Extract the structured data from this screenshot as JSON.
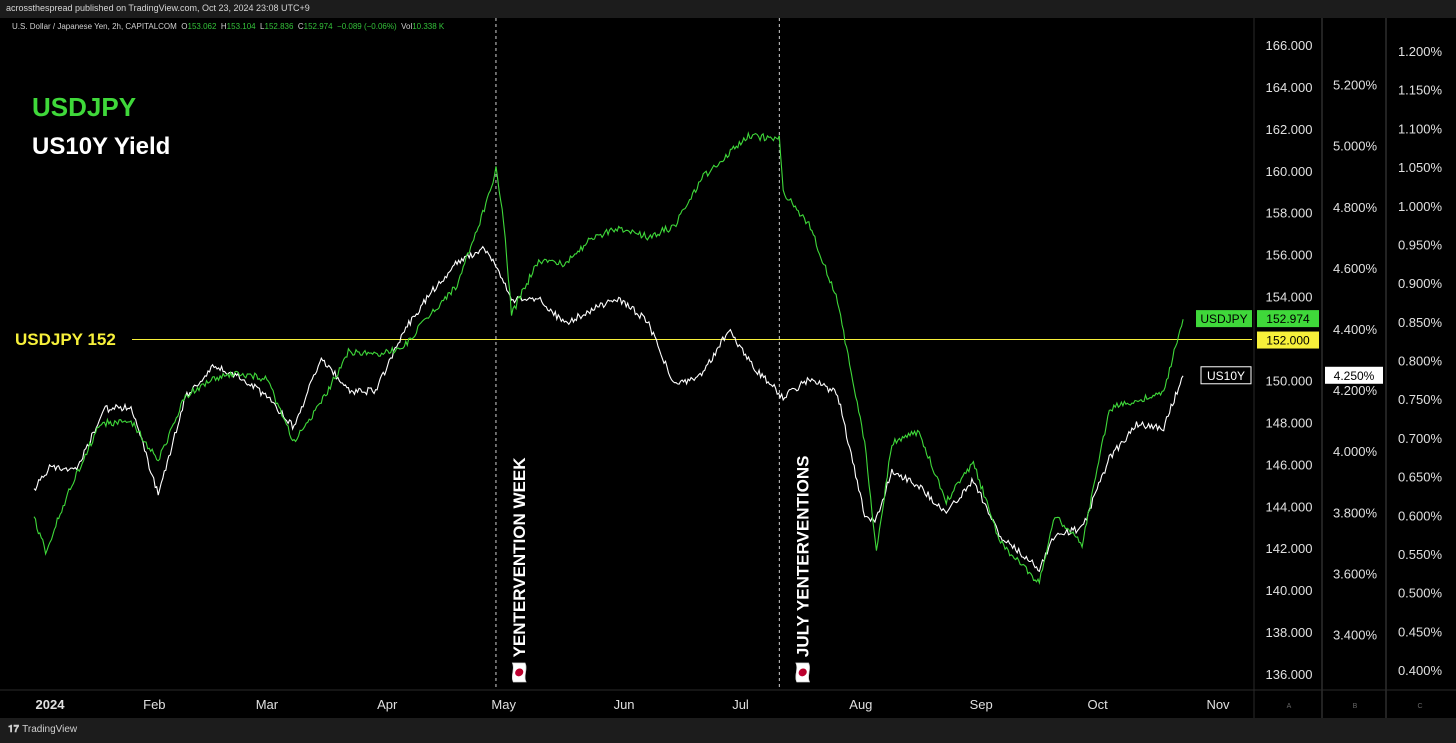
{
  "header": {
    "published_text": "acrossthespread published on TradingView.com, Oct 23, 2024 23:08 UTC+9",
    "symbol_line": "U.S. Dollar / Japanese Yen, 2h, CAPITALCOM",
    "ohlc": {
      "o_label": "O",
      "o": "153.062",
      "h_label": "H",
      "h": "153.104",
      "l_label": "L",
      "l": "152.836",
      "c_label": "C",
      "c": "152.974",
      "chg": "−0.089 (−0.06%)",
      "vol_label": "Vol",
      "vol": "10.338 K"
    }
  },
  "legend": {
    "usdjpy_label": "USDJPY",
    "us10y_label": "US10Y Yield",
    "level_label": "USDJPY 152"
  },
  "footer": {
    "brand": "TradingView",
    "scale_letters": [
      "A",
      "B",
      "C"
    ]
  },
  "colors": {
    "usdjpy": "#3fd83a",
    "us10y": "#ffffff",
    "level": "#f7f03a",
    "background": "#000000"
  },
  "chart_data": {
    "type": "line",
    "x_ticks": [
      "2024",
      "Feb",
      "Mar",
      "Apr",
      "May",
      "Jun",
      "Jul",
      "Aug",
      "Sep",
      "Oct",
      "Nov"
    ],
    "y_axis_usdjpy": {
      "ticks": [
        "136.000",
        "138.000",
        "140.000",
        "142.000",
        "144.000",
        "146.000",
        "148.000",
        "150.000",
        "152.000",
        "154.000",
        "156.000",
        "158.000",
        "160.000",
        "162.000",
        "164.000",
        "166.000"
      ],
      "range": [
        136,
        166
      ]
    },
    "y_axis_us10y": {
      "ticks": [
        "3.400%",
        "3.600%",
        "3.800%",
        "4.000%",
        "4.200%",
        "4.400%",
        "4.600%",
        "4.800%",
        "5.000%",
        "5.200%"
      ],
      "range": [
        3.3,
        5.3
      ]
    },
    "y_axis_c": {
      "ticks": [
        "0.400%",
        "0.450%",
        "0.500%",
        "0.550%",
        "0.600%",
        "0.650%",
        "0.700%",
        "0.750%",
        "0.800%",
        "0.850%",
        "0.900%",
        "0.950%",
        "1.000%",
        "1.050%",
        "1.100%",
        "1.150%",
        "1.200%"
      ]
    },
    "series": [
      {
        "name": "USDJPY",
        "axis": "usdjpy",
        "color": "#3fd83a",
        "x": [
          "2024-01-01",
          "2024-01-04",
          "2024-01-10",
          "2024-01-18",
          "2024-01-26",
          "2024-02-02",
          "2024-02-09",
          "2024-02-16",
          "2024-02-23",
          "2024-03-01",
          "2024-03-08",
          "2024-03-15",
          "2024-03-22",
          "2024-03-29",
          "2024-04-05",
          "2024-04-12",
          "2024-04-19",
          "2024-04-26",
          "2024-04-29",
          "2024-05-01",
          "2024-05-03",
          "2024-05-10",
          "2024-05-17",
          "2024-05-24",
          "2024-05-31",
          "2024-06-07",
          "2024-06-14",
          "2024-06-21",
          "2024-06-28",
          "2024-07-03",
          "2024-07-11",
          "2024-07-12",
          "2024-07-19",
          "2024-07-26",
          "2024-08-02",
          "2024-08-05",
          "2024-08-09",
          "2024-08-16",
          "2024-08-23",
          "2024-08-30",
          "2024-09-06",
          "2024-09-13",
          "2024-09-16",
          "2024-09-20",
          "2024-09-27",
          "2024-10-04",
          "2024-10-11",
          "2024-10-18",
          "2024-10-23"
        ],
        "values": [
          143.5,
          141.9,
          144.8,
          148.0,
          148.1,
          146.2,
          149.3,
          150.1,
          150.4,
          150.1,
          147.1,
          149.0,
          151.4,
          151.3,
          151.6,
          153.2,
          154.6,
          158.2,
          160.1,
          157.6,
          153.2,
          155.8,
          155.6,
          156.9,
          157.3,
          156.9,
          157.4,
          159.7,
          160.9,
          161.7,
          161.6,
          159.0,
          157.4,
          153.8,
          147.1,
          141.8,
          147.1,
          147.6,
          144.3,
          146.1,
          142.3,
          140.9,
          140.4,
          143.6,
          142.2,
          148.7,
          149.1,
          149.5,
          152.97
        ]
      },
      {
        "name": "US10Y Yield",
        "axis": "us10y",
        "color": "#ffffff",
        "x": [
          "2024-01-01",
          "2024-01-05",
          "2024-01-12",
          "2024-01-19",
          "2024-01-26",
          "2024-02-02",
          "2024-02-09",
          "2024-02-16",
          "2024-02-23",
          "2024-03-01",
          "2024-03-08",
          "2024-03-15",
          "2024-03-22",
          "2024-03-29",
          "2024-04-05",
          "2024-04-12",
          "2024-04-19",
          "2024-04-26",
          "2024-04-29",
          "2024-05-03",
          "2024-05-10",
          "2024-05-17",
          "2024-05-24",
          "2024-05-31",
          "2024-06-07",
          "2024-06-14",
          "2024-06-21",
          "2024-06-28",
          "2024-07-05",
          "2024-07-12",
          "2024-07-19",
          "2024-07-26",
          "2024-08-02",
          "2024-08-05",
          "2024-08-09",
          "2024-08-16",
          "2024-08-23",
          "2024-08-30",
          "2024-09-06",
          "2024-09-13",
          "2024-09-16",
          "2024-09-20",
          "2024-09-27",
          "2024-10-04",
          "2024-10-11",
          "2024-10-18",
          "2024-10-23"
        ],
        "values": [
          3.88,
          3.95,
          3.94,
          4.14,
          4.15,
          3.86,
          4.18,
          4.28,
          4.25,
          4.18,
          4.08,
          4.31,
          4.2,
          4.2,
          4.39,
          4.52,
          4.62,
          4.67,
          4.61,
          4.5,
          4.5,
          4.42,
          4.47,
          4.5,
          4.43,
          4.22,
          4.25,
          4.4,
          4.27,
          4.18,
          4.24,
          4.19,
          3.79,
          3.78,
          3.94,
          3.89,
          3.8,
          3.91,
          3.72,
          3.65,
          3.62,
          3.73,
          3.75,
          3.98,
          4.09,
          4.08,
          4.25
        ]
      }
    ],
    "vertical_markers": [
      {
        "x": "2024-04-29",
        "label": "🇯🇵 YENTERVENTION WEEK"
      },
      {
        "x": "2024-07-11",
        "label": "🇯🇵 JULY YENTERVENTIONS"
      }
    ],
    "horizontal_line": {
      "value": 152.0,
      "axis": "usdjpy",
      "color": "#f7f03a"
    },
    "price_tags": {
      "usdjpy_name": "USDJPY",
      "usdjpy_value": "152.974",
      "level_value": "152.000",
      "us10y_name": "US10Y",
      "us10y_value": "4.250%"
    }
  }
}
